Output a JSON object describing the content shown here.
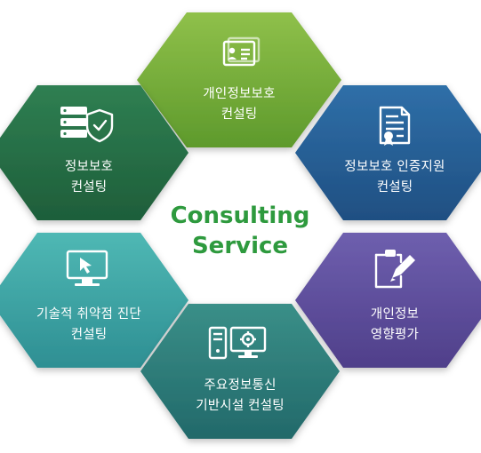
{
  "center": {
    "line1": "Consulting",
    "line2": "Service"
  },
  "colors": {
    "center_text": "#2e9a3e",
    "label_text": "#ffffff"
  },
  "services": [
    {
      "id": "personal-info-protection",
      "line1": "개인정보보호",
      "line2": "컨설팅",
      "icon": "id-card-icon",
      "color_top": "#8fc04a",
      "color_bottom": "#5e9a2c"
    },
    {
      "id": "information-protection",
      "line1": "정보보호",
      "line2": "컨설팅",
      "icon": "server-shield-icon",
      "color_top": "#2f7f52",
      "color_bottom": "#1e5e3a"
    },
    {
      "id": "certification-support",
      "line1": "정보보호 인증지원",
      "line2": "컨설팅",
      "icon": "certificate-document-icon",
      "color_top": "#2f6fa8",
      "color_bottom": "#1f4f82"
    },
    {
      "id": "vulnerability-diagnosis",
      "line1": "기술적 취약점 진단",
      "line2": "컨설팅",
      "icon": "monitor-cursor-icon",
      "color_top": "#4fb8b4",
      "color_bottom": "#2e8f93"
    },
    {
      "id": "privacy-impact-assessment",
      "line1": "개인정보",
      "line2": "영향평가",
      "icon": "clipboard-pencil-icon",
      "color_top": "#6e5fae",
      "color_bottom": "#4f3f8a"
    },
    {
      "id": "infrastructure-consulting",
      "line1": "주요정보통신",
      "line2": "기반시설 컨설팅",
      "icon": "computer-gear-icon",
      "color_top": "#3a8f88",
      "color_bottom": "#22696a"
    }
  ]
}
